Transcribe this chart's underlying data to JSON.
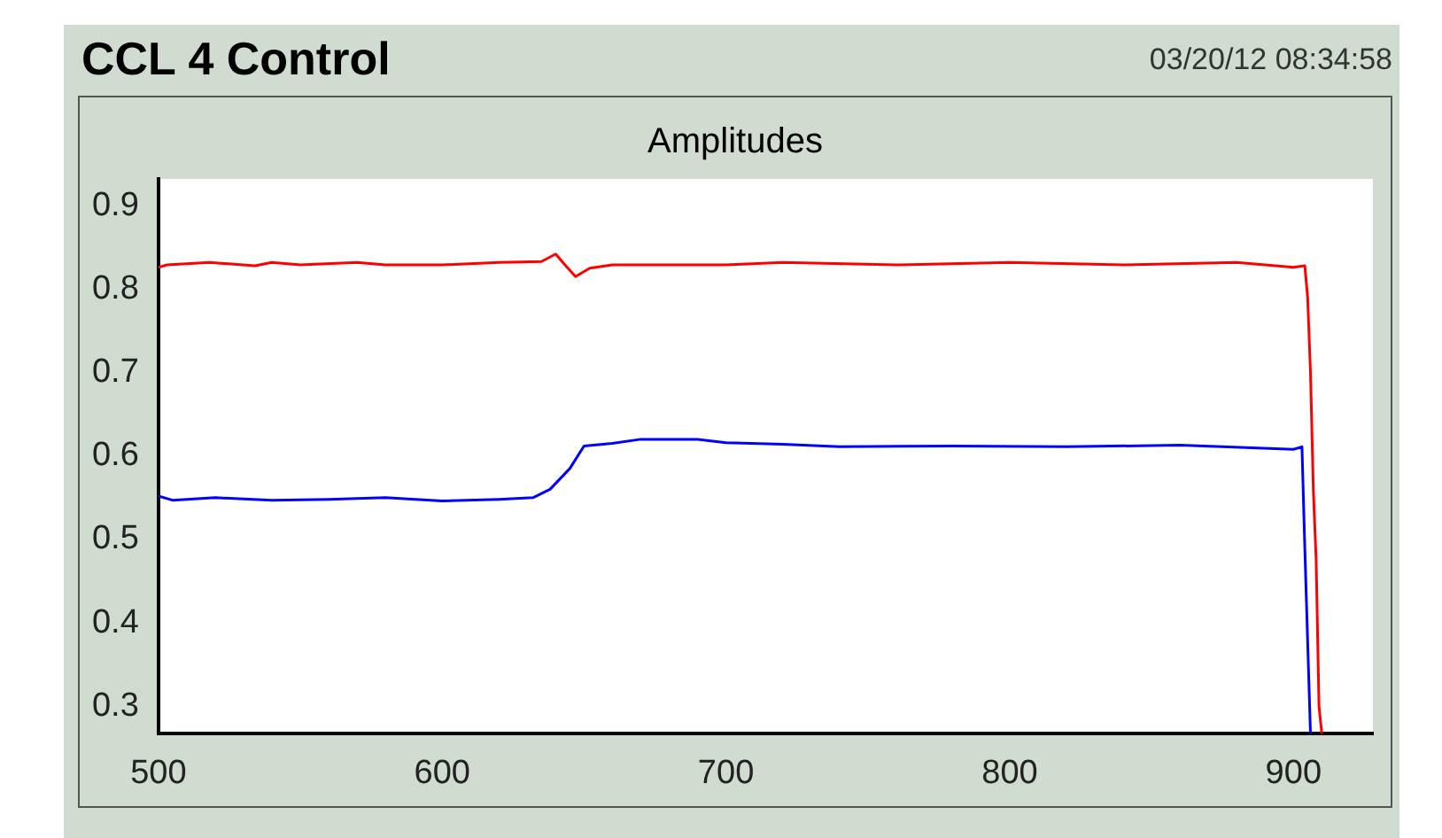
{
  "chart_data": {
    "type": "line",
    "title": "CCL 4 Control",
    "subtitle": "Amplitudes",
    "annotations": [
      "03/20/12 08:34:58"
    ],
    "xlim": [
      500,
      928
    ],
    "xticks": [
      500,
      600,
      700,
      800,
      900
    ],
    "ylim": [
      0.267,
      0.932
    ],
    "yticks": [
      0.3,
      0.4,
      0.5,
      0.6,
      0.7,
      0.8,
      0.9
    ],
    "grid": false,
    "legend": false,
    "marker": "none",
    "line_style": "solid",
    "series": [
      {
        "color": "#ff0000",
        "x": [
          500,
          503,
          518,
          534,
          540,
          550,
          570,
          580,
          600,
          620,
          635,
          640,
          643,
          647,
          652,
          660,
          700,
          720,
          760,
          800,
          840,
          880,
          900,
          904,
          905,
          906,
          907,
          908,
          909,
          910
        ],
        "values": [
          0.826,
          0.829,
          0.832,
          0.828,
          0.832,
          0.829,
          0.832,
          0.829,
          0.829,
          0.832,
          0.833,
          0.842,
          0.83,
          0.815,
          0.825,
          0.829,
          0.829,
          0.832,
          0.829,
          0.832,
          0.829,
          0.832,
          0.826,
          0.828,
          0.79,
          0.7,
          0.56,
          0.475,
          0.3,
          0.267
        ]
      },
      {
        "color": "#0000ff",
        "x": [
          500,
          505,
          520,
          540,
          560,
          580,
          600,
          620,
          632,
          638,
          645,
          650,
          660,
          670,
          690,
          700,
          720,
          740,
          780,
          820,
          860,
          900,
          903,
          904,
          905,
          906
        ],
        "values": [
          0.552,
          0.547,
          0.55,
          0.547,
          0.548,
          0.55,
          0.546,
          0.548,
          0.55,
          0.56,
          0.585,
          0.612,
          0.615,
          0.62,
          0.62,
          0.616,
          0.614,
          0.611,
          0.612,
          0.611,
          0.613,
          0.608,
          0.611,
          0.49,
          0.378,
          0.267
        ]
      }
    ]
  }
}
